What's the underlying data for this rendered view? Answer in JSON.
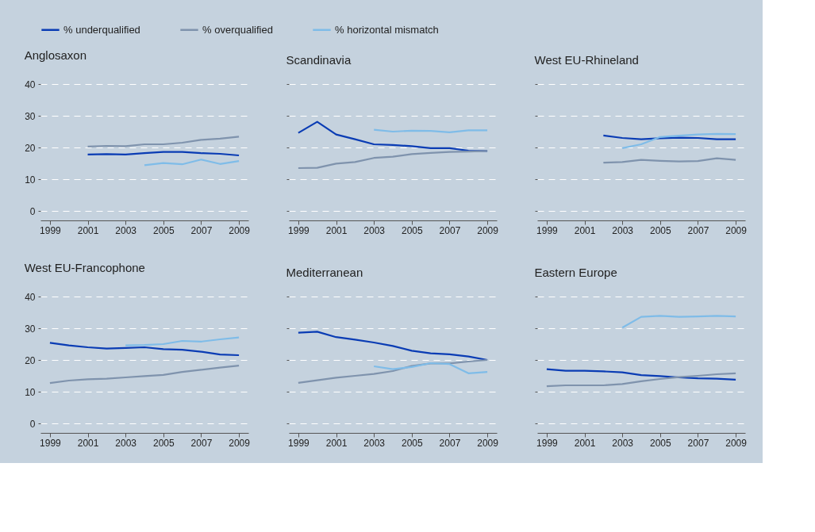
{
  "chart_data": [
    {
      "type": "line",
      "title": "Anglosaxon",
      "legend": "top",
      "grid": "y",
      "line_style": "solid",
      "marker": "none",
      "xlim": [
        1998.5,
        2009.5
      ],
      "xticks": [
        1999,
        2001,
        2003,
        2005,
        2007,
        2009
      ],
      "ylim": [
        -3,
        40
      ],
      "yticks": [
        0,
        10,
        20,
        30,
        40
      ],
      "x": [
        2001,
        2002,
        2003,
        2004,
        2005,
        2006,
        2007,
        2008,
        2009
      ],
      "series": [
        {
          "name": "% underqualified",
          "color": "#0a3cb4",
          "values": [
            17.8,
            17.9,
            17.8,
            18.2,
            18.6,
            18.6,
            18.2,
            18.0,
            17.5
          ]
        },
        {
          "name": "% overqualified",
          "color": "#7f93ad",
          "values": [
            20.3,
            20.5,
            20.4,
            21.0,
            21.0,
            21.5,
            22.4,
            22.8,
            23.4
          ]
        },
        {
          "name": "% horizontal mismatch",
          "color": "#7fbce8",
          "values": [
            null,
            null,
            null,
            14.4,
            15.1,
            14.7,
            16.2,
            14.8,
            15.7
          ]
        }
      ]
    },
    {
      "type": "line",
      "title": "Scandinavia",
      "grid": "y",
      "tick_labels": "x",
      "line_style": "solid",
      "marker": "none",
      "xlim": [
        1998.5,
        2009.5
      ],
      "xticks": [
        1999,
        2001,
        2003,
        2005,
        2007,
        2009
      ],
      "ylim": [
        -3,
        40
      ],
      "yticks": [
        0,
        10,
        20,
        30,
        40
      ],
      "x": [
        1999,
        2000,
        2001,
        2002,
        2003,
        2004,
        2005,
        2006,
        2007,
        2008,
        2009
      ],
      "series": [
        {
          "color": "#0a3cb4",
          "values": [
            24.6,
            28.1,
            24.1,
            22.6,
            21.0,
            20.8,
            20.4,
            19.8,
            19.8,
            19.0,
            18.9
          ]
        },
        {
          "color": "#7f93ad",
          "values": [
            13.5,
            13.6,
            14.9,
            15.4,
            16.7,
            17.1,
            17.9,
            18.3,
            18.6,
            18.7,
            18.9
          ]
        },
        {
          "color": "#7fbce8",
          "values": [
            null,
            null,
            null,
            null,
            25.6,
            25.0,
            25.3,
            25.2,
            24.8,
            25.4,
            25.4
          ]
        }
      ]
    },
    {
      "type": "line",
      "title": "West EU-Rhineland",
      "grid": "y",
      "tick_labels": "x",
      "line_style": "solid",
      "marker": "none",
      "xlim": [
        1998.5,
        2009.5
      ],
      "xticks": [
        1999,
        2001,
        2003,
        2005,
        2007,
        2009
      ],
      "ylim": [
        -3,
        40
      ],
      "yticks": [
        0,
        10,
        20,
        30,
        40
      ],
      "x": [
        2002,
        2003,
        2004,
        2005,
        2006,
        2007,
        2008,
        2009
      ],
      "series": [
        {
          "color": "#0a3cb4",
          "values": [
            23.8,
            23.0,
            22.6,
            22.9,
            23.1,
            23.0,
            22.6,
            22.6
          ]
        },
        {
          "color": "#7f93ad",
          "values": [
            15.2,
            15.4,
            16.1,
            15.8,
            15.6,
            15.7,
            16.6,
            16.1
          ]
        },
        {
          "color": "#7fbce8",
          "values": [
            null,
            19.8,
            21.0,
            23.3,
            23.7,
            24.1,
            24.3,
            24.2
          ]
        }
      ]
    },
    {
      "type": "line",
      "title": "West EU-Francophone",
      "grid": "y",
      "line_style": "solid",
      "marker": "none",
      "xlim": [
        1998.5,
        2009.5
      ],
      "xticks": [
        1999,
        2001,
        2003,
        2005,
        2007,
        2009
      ],
      "ylim": [
        -3,
        40
      ],
      "yticks": [
        0,
        10,
        20,
        30,
        40
      ],
      "x": [
        1999,
        2000,
        2001,
        2002,
        2003,
        2004,
        2005,
        2006,
        2007,
        2008,
        2009
      ],
      "series": [
        {
          "color": "#0a3cb4",
          "values": [
            25.4,
            24.6,
            24.0,
            23.6,
            23.8,
            24.0,
            23.4,
            23.2,
            22.6,
            21.7,
            21.5
          ]
        },
        {
          "color": "#7f93ad",
          "values": [
            12.7,
            13.5,
            13.9,
            14.1,
            14.5,
            14.9,
            15.3,
            16.2,
            16.9,
            17.6,
            18.2
          ]
        },
        {
          "color": "#7fbce8",
          "values": [
            null,
            null,
            null,
            null,
            24.6,
            24.7,
            25.0,
            26.0,
            25.8,
            26.5,
            27.1
          ]
        }
      ]
    },
    {
      "type": "line",
      "title": "Mediterranean",
      "grid": "y",
      "tick_labels": "x",
      "line_style": "solid",
      "marker": "none",
      "xlim": [
        1998.5,
        2009.5
      ],
      "xticks": [
        1999,
        2001,
        2003,
        2005,
        2007,
        2009
      ],
      "ylim": [
        -3,
        40
      ],
      "yticks": [
        0,
        10,
        20,
        30,
        40
      ],
      "x": [
        1999,
        2000,
        2001,
        2002,
        2003,
        2004,
        2005,
        2006,
        2007,
        2008,
        2009
      ],
      "series": [
        {
          "color": "#0a3cb4",
          "values": [
            28.6,
            28.9,
            27.2,
            26.4,
            25.5,
            24.4,
            22.9,
            22.1,
            21.8,
            21.1,
            20.0
          ]
        },
        {
          "color": "#7f93ad",
          "values": [
            12.8,
            13.6,
            14.4,
            15.0,
            15.6,
            16.5,
            18.1,
            18.9,
            18.9,
            19.5,
            20.0
          ]
        },
        {
          "color": "#7fbce8",
          "values": [
            null,
            null,
            null,
            null,
            18.0,
            17.1,
            17.8,
            19.0,
            18.7,
            15.8,
            16.2
          ]
        }
      ]
    },
    {
      "type": "line",
      "title": "Eastern Europe",
      "grid": "y",
      "tick_labels": "x",
      "line_style": "solid",
      "marker": "none",
      "xlim": [
        1998.5,
        2009.5
      ],
      "xticks": [
        1999,
        2001,
        2003,
        2005,
        2007,
        2009
      ],
      "ylim": [
        -3,
        40
      ],
      "yticks": [
        0,
        10,
        20,
        30,
        40
      ],
      "x": [
        1999,
        2000,
        2001,
        2002,
        2003,
        2004,
        2005,
        2006,
        2007,
        2008,
        2009
      ],
      "series": [
        {
          "color": "#0a3cb4",
          "values": [
            17.1,
            16.6,
            16.6,
            16.4,
            16.1,
            15.2,
            14.9,
            14.5,
            14.2,
            14.1,
            13.8
          ]
        },
        {
          "color": "#7f93ad",
          "values": [
            11.7,
            12.0,
            12.0,
            12.0,
            12.4,
            13.3,
            14.0,
            14.6,
            15.0,
            15.5,
            15.8
          ]
        },
        {
          "color": "#7fbce8",
          "values": [
            null,
            null,
            null,
            null,
            30.2,
            33.6,
            33.9,
            33.6,
            33.7,
            33.9,
            33.7
          ]
        }
      ]
    }
  ]
}
